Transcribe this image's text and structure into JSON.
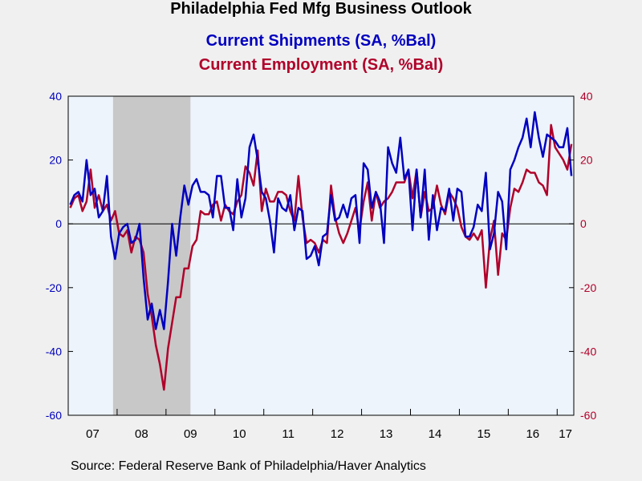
{
  "chart_data": {
    "type": "line",
    "title": "Philadelphia Fed Mfg Business Outlook",
    "source": "Source:  Federal Reserve Bank of Philadelphia/Haver Analytics",
    "x_tick_labels": [
      "07",
      "08",
      "09",
      "10",
      "11",
      "12",
      "13",
      "14",
      "15",
      "16",
      "17"
    ],
    "ylim": [
      -60,
      40
    ],
    "yticks_left": [
      "40",
      "20",
      "0",
      "-20",
      "-40",
      "-60"
    ],
    "yticks_right": [
      "40",
      "20",
      "0",
      "-20",
      "-40",
      "-60"
    ],
    "recession_shading": {
      "start": "2007-12",
      "end": "2009-06",
      "color": "#c8c8c8"
    },
    "plot_background": "#edf4fb",
    "series": [
      {
        "name": "Current Shipments (SA, %Bal)",
        "color": "#0000c0",
        "axis": "left",
        "values": [
          [
            "2007-01",
            6
          ],
          [
            "2007-02",
            9
          ],
          [
            "2007-03",
            10
          ],
          [
            "2007-04",
            7
          ],
          [
            "2007-05",
            20
          ],
          [
            "2007-06",
            9
          ],
          [
            "2007-07",
            11
          ],
          [
            "2007-08",
            2
          ],
          [
            "2007-09",
            4
          ],
          [
            "2007-10",
            15
          ],
          [
            "2007-11",
            -4
          ],
          [
            "2007-12",
            -11
          ],
          [
            "2008-01",
            -3
          ],
          [
            "2008-02",
            -1
          ],
          [
            "2008-03",
            0
          ],
          [
            "2008-04",
            -6
          ],
          [
            "2008-05",
            -5
          ],
          [
            "2008-06",
            0
          ],
          [
            "2008-07",
            -17
          ],
          [
            "2008-08",
            -30
          ],
          [
            "2008-09",
            -25
          ],
          [
            "2008-10",
            -33
          ],
          [
            "2008-11",
            -27
          ],
          [
            "2008-12",
            -33
          ],
          [
            "2009-01",
            -18
          ],
          [
            "2009-02",
            0
          ],
          [
            "2009-03",
            -10
          ],
          [
            "2009-04",
            2
          ],
          [
            "2009-05",
            12
          ],
          [
            "2009-06",
            6
          ],
          [
            "2009-07",
            12
          ],
          [
            "2009-08",
            14
          ],
          [
            "2009-09",
            10
          ],
          [
            "2009-10",
            10
          ],
          [
            "2009-11",
            9
          ],
          [
            "2009-12",
            2
          ],
          [
            "2010-01",
            15
          ],
          [
            "2010-02",
            15
          ],
          [
            "2010-03",
            5
          ],
          [
            "2010-04",
            5
          ],
          [
            "2010-05",
            -2
          ],
          [
            "2010-06",
            14
          ],
          [
            "2010-07",
            2
          ],
          [
            "2010-08",
            8
          ],
          [
            "2010-09",
            24
          ],
          [
            "2010-10",
            28
          ],
          [
            "2010-11",
            20
          ],
          [
            "2010-12",
            10
          ],
          [
            "2011-01",
            8
          ],
          [
            "2011-02",
            1
          ],
          [
            "2011-03",
            -9
          ],
          [
            "2011-04",
            8
          ],
          [
            "2011-05",
            5
          ],
          [
            "2011-06",
            4
          ],
          [
            "2011-07",
            9
          ],
          [
            "2011-08",
            -2
          ],
          [
            "2011-09",
            5
          ],
          [
            "2011-10",
            4
          ],
          [
            "2011-11",
            -11
          ],
          [
            "2011-12",
            -10
          ],
          [
            "2012-01",
            -7
          ],
          [
            "2012-02",
            -13
          ],
          [
            "2012-03",
            -4
          ],
          [
            "2012-04",
            -3
          ],
          [
            "2012-05",
            9
          ],
          [
            "2012-06",
            1
          ],
          [
            "2012-07",
            2
          ],
          [
            "2012-08",
            6
          ],
          [
            "2012-09",
            2
          ],
          [
            "2012-10",
            8
          ],
          [
            "2012-11",
            9
          ],
          [
            "2012-12",
            -6
          ],
          [
            "2013-01",
            19
          ],
          [
            "2013-02",
            17
          ],
          [
            "2013-03",
            5
          ],
          [
            "2013-04",
            10
          ],
          [
            "2013-05",
            7
          ],
          [
            "2013-06",
            -6
          ],
          [
            "2013-07",
            24
          ],
          [
            "2013-08",
            19
          ],
          [
            "2013-09",
            16
          ],
          [
            "2013-10",
            27
          ],
          [
            "2013-11",
            14
          ],
          [
            "2013-12",
            17
          ],
          [
            "2014-01",
            -2
          ],
          [
            "2014-02",
            17
          ],
          [
            "2014-03",
            2
          ],
          [
            "2014-04",
            17
          ],
          [
            "2014-05",
            -5
          ],
          [
            "2014-06",
            9
          ],
          [
            "2014-07",
            -2
          ],
          [
            "2014-08",
            5
          ],
          [
            "2014-09",
            4
          ],
          [
            "2014-10",
            11
          ],
          [
            "2014-11",
            1
          ],
          [
            "2014-12",
            11
          ],
          [
            "2015-01",
            10
          ],
          [
            "2015-02",
            -4
          ],
          [
            "2015-03",
            -4
          ],
          [
            "2015-04",
            -1
          ],
          [
            "2015-05",
            6
          ],
          [
            "2015-06",
            4
          ],
          [
            "2015-07",
            16
          ],
          [
            "2015-08",
            -8
          ],
          [
            "2015-09",
            -3
          ],
          [
            "2015-10",
            10
          ],
          [
            "2015-11",
            7
          ],
          [
            "2015-12",
            -8
          ],
          [
            "2016-01",
            17
          ],
          [
            "2016-02",
            20
          ],
          [
            "2016-03",
            24
          ],
          [
            "2016-04",
            27
          ],
          [
            "2016-05",
            33
          ],
          [
            "2016-06",
            24
          ],
          [
            "2016-07",
            35
          ],
          [
            "2016-08",
            27
          ],
          [
            "2016-09",
            21
          ],
          [
            "2016-10",
            28
          ],
          [
            "2016-11",
            27
          ],
          [
            "2016-12",
            26
          ],
          [
            "2017-01",
            24
          ],
          [
            "2017-02",
            24
          ],
          [
            "2017-03",
            30
          ],
          [
            "2017-04",
            15
          ]
        ]
      },
      {
        "name": "Current Employment (SA, %Bal)",
        "color": "#b0002a",
        "axis": "right",
        "values": [
          [
            "2007-01",
            5
          ],
          [
            "2007-02",
            8
          ],
          [
            "2007-03",
            9
          ],
          [
            "2007-04",
            4
          ],
          [
            "2007-05",
            7
          ],
          [
            "2007-06",
            17
          ],
          [
            "2007-07",
            5
          ],
          [
            "2007-08",
            9
          ],
          [
            "2007-09",
            4
          ],
          [
            "2007-10",
            6
          ],
          [
            "2007-11",
            1
          ],
          [
            "2007-12",
            4
          ],
          [
            "2008-01",
            -3
          ],
          [
            "2008-02",
            -4
          ],
          [
            "2008-03",
            -2
          ],
          [
            "2008-04",
            -9
          ],
          [
            "2008-05",
            -4
          ],
          [
            "2008-06",
            -5
          ],
          [
            "2008-07",
            -9
          ],
          [
            "2008-08",
            -22
          ],
          [
            "2008-09",
            -29
          ],
          [
            "2008-10",
            -38
          ],
          [
            "2008-11",
            -44
          ],
          [
            "2008-12",
            -52
          ],
          [
            "2009-01",
            -39
          ],
          [
            "2009-02",
            -31
          ],
          [
            "2009-03",
            -23
          ],
          [
            "2009-04",
            -23
          ],
          [
            "2009-05",
            -14
          ],
          [
            "2009-06",
            -14
          ],
          [
            "2009-07",
            -7
          ],
          [
            "2009-08",
            -5
          ],
          [
            "2009-09",
            4
          ],
          [
            "2009-10",
            3
          ],
          [
            "2009-11",
            3
          ],
          [
            "2009-12",
            6
          ],
          [
            "2010-01",
            7
          ],
          [
            "2010-02",
            1
          ],
          [
            "2010-03",
            6
          ],
          [
            "2010-04",
            4
          ],
          [
            "2010-05",
            3
          ],
          [
            "2010-06",
            7
          ],
          [
            "2010-07",
            9
          ],
          [
            "2010-08",
            18
          ],
          [
            "2010-09",
            16
          ],
          [
            "2010-10",
            12
          ],
          [
            "2010-11",
            23
          ],
          [
            "2010-12",
            4
          ],
          [
            "2011-01",
            11
          ],
          [
            "2011-02",
            7
          ],
          [
            "2011-03",
            7
          ],
          [
            "2011-04",
            10
          ],
          [
            "2011-05",
            10
          ],
          [
            "2011-06",
            9
          ],
          [
            "2011-07",
            4
          ],
          [
            "2011-08",
            1
          ],
          [
            "2011-09",
            15
          ],
          [
            "2011-10",
            2
          ],
          [
            "2011-11",
            -6
          ],
          [
            "2011-12",
            -5
          ],
          [
            "2012-01",
            -6
          ],
          [
            "2012-02",
            -9
          ],
          [
            "2012-03",
            -5
          ],
          [
            "2012-04",
            -6
          ],
          [
            "2012-05",
            12
          ],
          [
            "2012-06",
            2
          ],
          [
            "2012-07",
            -3
          ],
          [
            "2012-08",
            -6
          ],
          [
            "2012-09",
            -3
          ],
          [
            "2012-10",
            1
          ],
          [
            "2012-11",
            5
          ],
          [
            "2012-12",
            -2
          ],
          [
            "2013-01",
            7
          ],
          [
            "2013-02",
            13
          ],
          [
            "2013-03",
            1
          ],
          [
            "2013-04",
            10
          ],
          [
            "2013-05",
            5
          ],
          [
            "2013-06",
            7
          ],
          [
            "2013-07",
            8
          ],
          [
            "2013-08",
            10
          ],
          [
            "2013-09",
            13
          ],
          [
            "2013-10",
            13
          ],
          [
            "2013-11",
            13
          ],
          [
            "2013-12",
            17
          ],
          [
            "2014-01",
            8
          ],
          [
            "2014-02",
            17
          ],
          [
            "2014-03",
            2
          ],
          [
            "2014-04",
            10
          ],
          [
            "2014-05",
            4
          ],
          [
            "2014-06",
            5
          ],
          [
            "2014-07",
            12
          ],
          [
            "2014-08",
            6
          ],
          [
            "2014-09",
            3
          ],
          [
            "2014-10",
            10
          ],
          [
            "2014-11",
            8
          ],
          [
            "2014-12",
            5
          ],
          [
            "2015-01",
            -1
          ],
          [
            "2015-02",
            -4
          ],
          [
            "2015-03",
            -5
          ],
          [
            "2015-04",
            -3
          ],
          [
            "2015-05",
            -5
          ],
          [
            "2015-06",
            -2
          ],
          [
            "2015-07",
            -20
          ],
          [
            "2015-08",
            -5
          ],
          [
            "2015-09",
            1
          ],
          [
            "2015-10",
            -16
          ],
          [
            "2015-11",
            -3
          ],
          [
            "2015-12",
            -5
          ],
          [
            "2016-01",
            5
          ],
          [
            "2016-02",
            11
          ],
          [
            "2016-03",
            10
          ],
          [
            "2016-04",
            13
          ],
          [
            "2016-05",
            17
          ],
          [
            "2016-06",
            16
          ],
          [
            "2016-07",
            16
          ],
          [
            "2016-08",
            13
          ],
          [
            "2016-09",
            12
          ],
          [
            "2016-10",
            9
          ],
          [
            "2016-11",
            31
          ],
          [
            "2016-12",
            24
          ],
          [
            "2017-01",
            22
          ],
          [
            "2017-02",
            20
          ],
          [
            "2017-03",
            17
          ],
          [
            "2017-04",
            25
          ]
        ]
      }
    ]
  }
}
